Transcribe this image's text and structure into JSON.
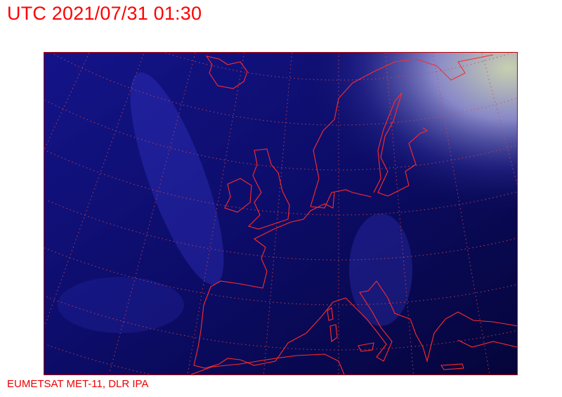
{
  "header": {
    "timestamp": "UTC 2021/07/31 01:30"
  },
  "footer": {
    "credit": "EUMETSAT MET-11, DLR IPA"
  },
  "map": {
    "content": "satellite-image",
    "region": "Europe",
    "colors": {
      "background": "#0a0a5a",
      "coastline": "#ff2020",
      "graticule": "#d04040",
      "frame": "#c00000",
      "text": "#ff0000"
    }
  }
}
